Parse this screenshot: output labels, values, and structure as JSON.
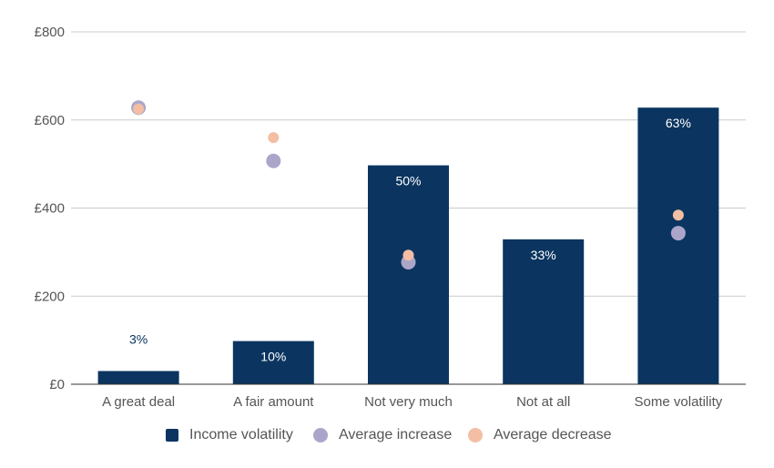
{
  "chart_data": {
    "type": "bar",
    "categories": [
      "A great deal",
      "A fair amount",
      "Not very much",
      "Not at all",
      "Some volatility"
    ],
    "ylim": [
      0,
      800
    ],
    "yticks": [
      0,
      200,
      400,
      600,
      800
    ],
    "ytick_labels": [
      "£0",
      "£200",
      "£400",
      "£600",
      "£800"
    ],
    "grid": true,
    "legend_position": "bottom",
    "series": [
      {
        "name": "Income volatility",
        "kind": "bar",
        "color": "#0b3560",
        "values": [
          30,
          98,
          497,
          329,
          628
        ],
        "labels": [
          "3%",
          "10%",
          "50%",
          "33%",
          "63%"
        ]
      },
      {
        "name": "Average increase",
        "kind": "scatter",
        "color": "#aba6c9",
        "values": [
          628,
          507,
          277,
          null,
          343
        ]
      },
      {
        "name": "Average decrease",
        "kind": "scatter",
        "color": "#f3bea3",
        "values": [
          625,
          560,
          293,
          null,
          384
        ]
      }
    ]
  }
}
